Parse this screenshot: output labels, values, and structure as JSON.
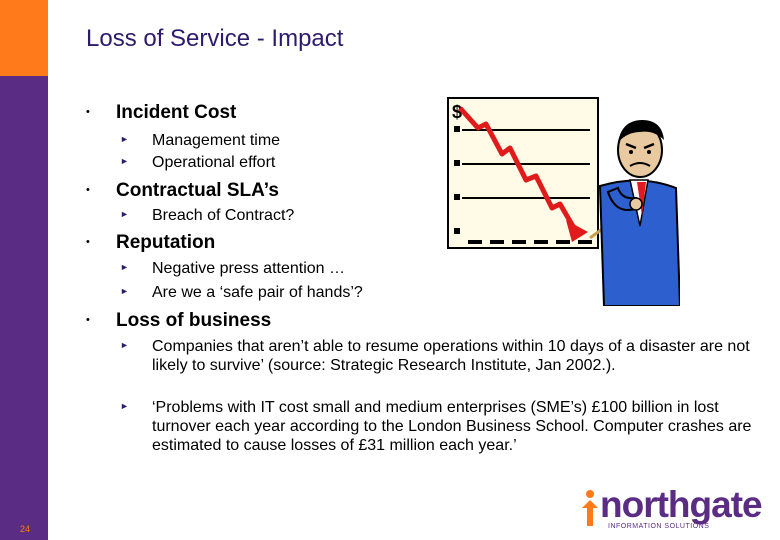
{
  "slide": {
    "title": "Loss of Service - Impact",
    "page_number": "24"
  },
  "bullets": [
    {
      "label": "Incident Cost",
      "subs": [
        "Management time",
        "Operational effort"
      ]
    },
    {
      "label": "Contractual SLA’s",
      "subs": [
        "Breach of Contract?"
      ]
    },
    {
      "label": "Reputation",
      "subs": [
        "Negative press attention …",
        "Are we a ‘safe pair of hands’?"
      ]
    },
    {
      "label": "Loss of business",
      "subs": [
        "Companies that aren’t able to resume operations within 10 days of a disaster are not likely to survive’ (source: Strategic Research Institute, Jan 2002.).",
        "‘Problems with IT cost small and medium enterprises (SME’s) £100 billion in lost turnover each year according to the London Business School. Computer crashes are estimated to cause losses of £31 million each year.’"
      ]
    }
  ],
  "clipart": {
    "chart_symbol": "$",
    "icon": "falling-chart-businessman-icon"
  },
  "logo": {
    "word": "northgate",
    "subtitle": "INFORMATION SOLUTIONS"
  },
  "colors": {
    "sidebar": "#5b2c83",
    "accent": "#ff7a1a",
    "title": "#2e1a6e",
    "trend_line": "#e01b1b"
  }
}
